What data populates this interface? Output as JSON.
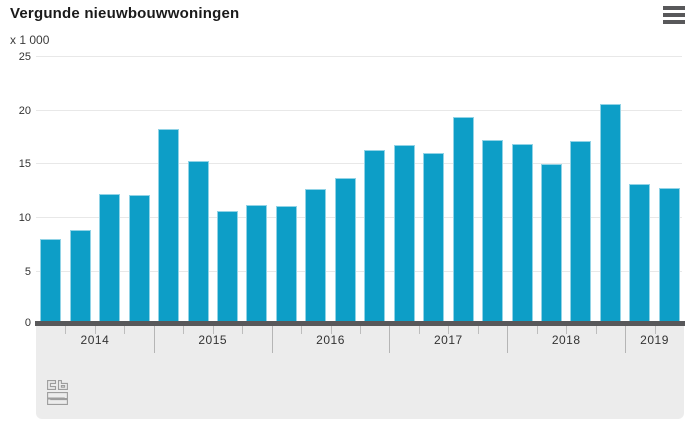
{
  "header": {
    "title": "Vergunde nieuwbouwwoningen",
    "menu_icon": "hamburger-menu-icon"
  },
  "chart_data": {
    "type": "bar",
    "title": "Vergunde nieuwbouwwoningen",
    "unit_label": "x 1 000",
    "ylabel": "x 1 000",
    "xlabel": "",
    "ylim": [
      0,
      25
    ],
    "yticks": [
      0,
      5,
      10,
      15,
      20,
      25
    ],
    "grid": "horizontal",
    "legend": "none",
    "series_by_year": [
      {
        "year": "2014",
        "values": [
          8.1,
          8.9,
          12.3,
          12.2
        ]
      },
      {
        "year": "2015",
        "values": [
          18.3,
          15.3,
          10.7,
          11.2
        ]
      },
      {
        "year": "2016",
        "values": [
          11.1,
          12.7,
          13.7,
          16.3
        ]
      },
      {
        "year": "2017",
        "values": [
          16.8,
          16.1,
          19.4,
          17.3
        ]
      },
      {
        "year": "2018",
        "values": [
          16.9,
          15.0,
          17.2,
          20.6
        ]
      },
      {
        "year": "2019",
        "values": [
          13.2,
          12.8
        ]
      }
    ]
  },
  "colors": {
    "bar": "#0d9ec7",
    "baseline": "#58585a",
    "panel": "#ececec",
    "gridline": "#e8e8e8",
    "menu_icon": "#58585a",
    "logo": "#9d9d9d"
  },
  "footer": {
    "logo": "cbs-logo"
  }
}
